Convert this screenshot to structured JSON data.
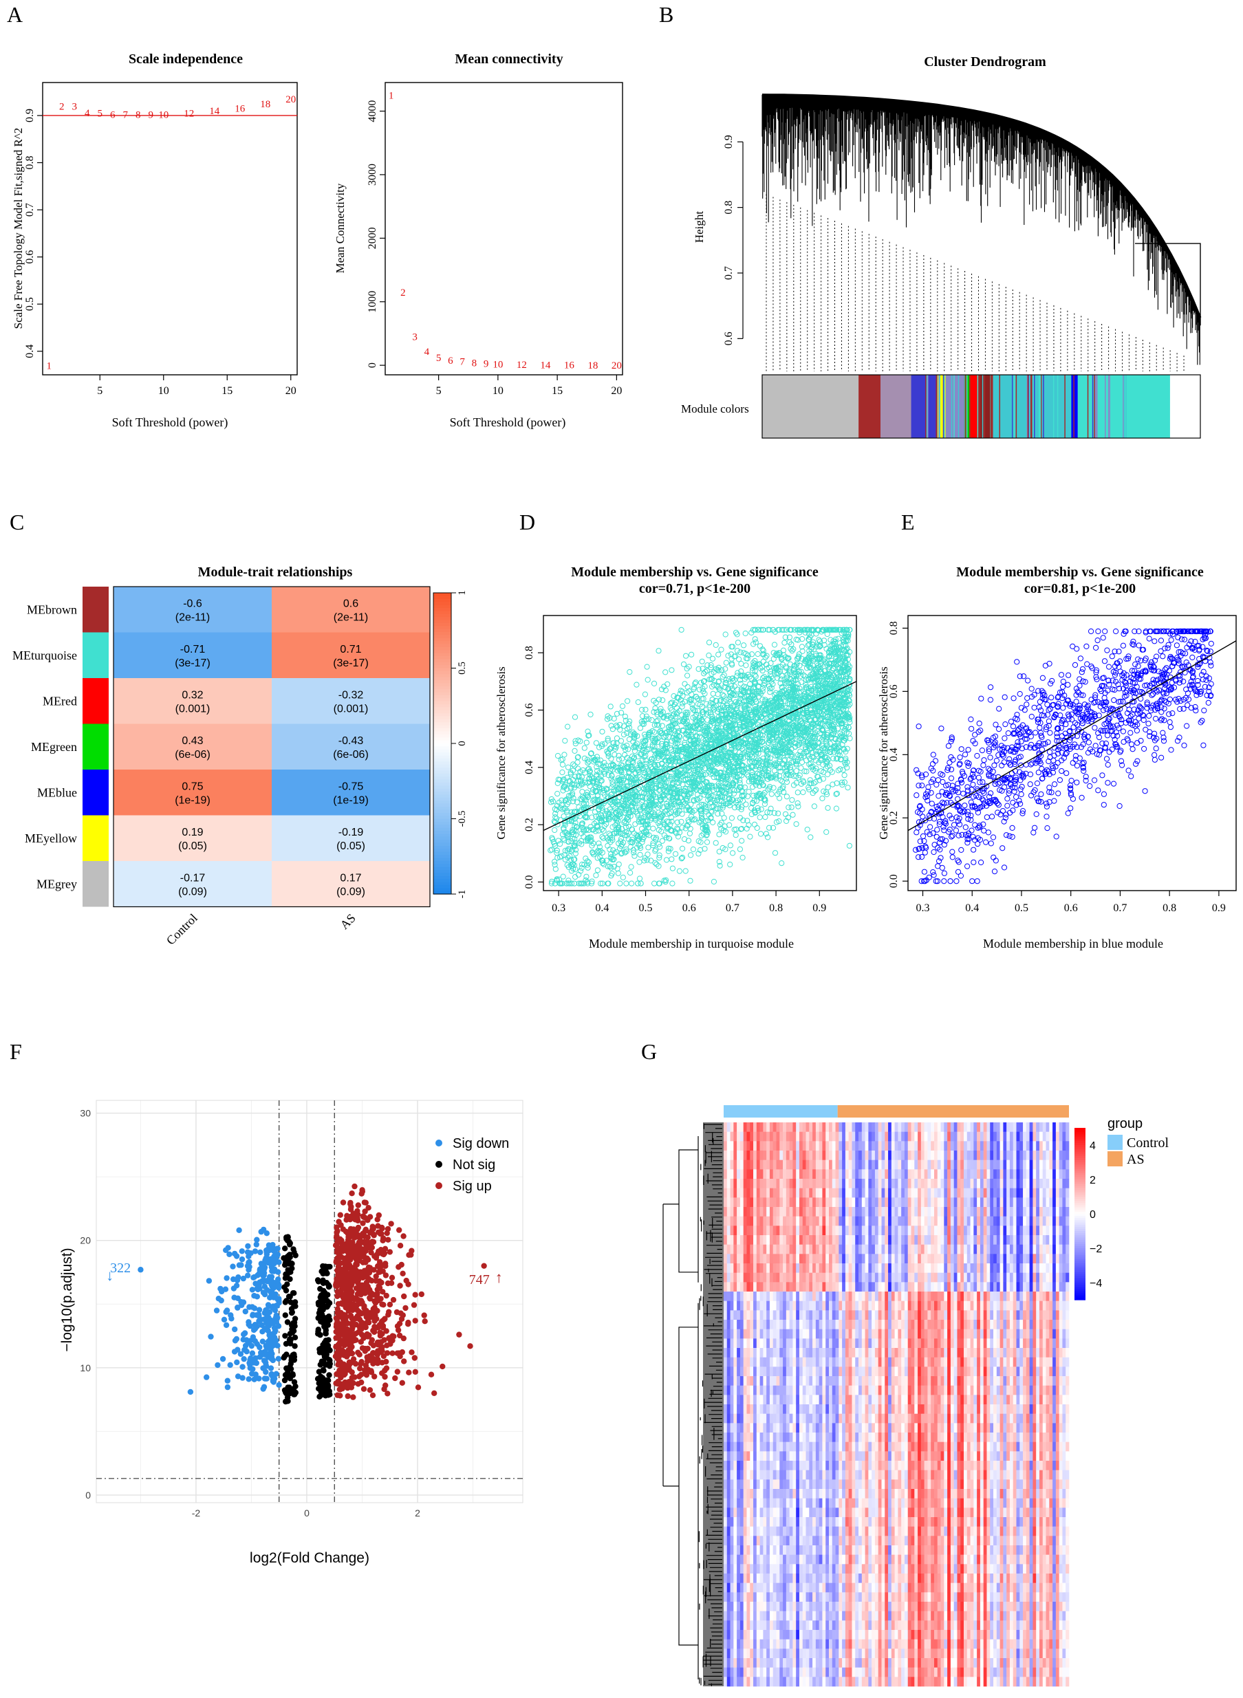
{
  "panel_letters": [
    "A",
    "B",
    "C",
    "D",
    "E",
    "F",
    "G"
  ],
  "chart_data": [
    {
      "panel": "A-left",
      "type": "scatter",
      "title": "Scale independence",
      "xlabel": "Soft Threshold (power)",
      "ylabel": "Scale Free Topology Model Fit,signed R^2",
      "xlim": [
        0.5,
        20.5
      ],
      "ylim": [
        0.35,
        0.97
      ],
      "xticks": [
        5,
        10,
        15,
        20
      ],
      "yticks": [
        0.4,
        0.5,
        0.6,
        0.7,
        0.8,
        0.9
      ],
      "hline": 0.9,
      "points": [
        {
          "x": 1,
          "y": 0.37,
          "label": "1"
        },
        {
          "x": 2,
          "y": 0.92,
          "label": "2"
        },
        {
          "x": 3,
          "y": 0.92,
          "label": "3"
        },
        {
          "x": 4,
          "y": 0.906,
          "label": "4"
        },
        {
          "x": 5,
          "y": 0.905,
          "label": "5"
        },
        {
          "x": 6,
          "y": 0.902,
          "label": "6"
        },
        {
          "x": 7,
          "y": 0.902,
          "label": "7"
        },
        {
          "x": 8,
          "y": 0.902,
          "label": "8"
        },
        {
          "x": 9,
          "y": 0.902,
          "label": "9"
        },
        {
          "x": 10,
          "y": 0.902,
          "label": "10"
        },
        {
          "x": 12,
          "y": 0.905,
          "label": "12"
        },
        {
          "x": 14,
          "y": 0.91,
          "label": "14"
        },
        {
          "x": 16,
          "y": 0.915,
          "label": "16"
        },
        {
          "x": 18,
          "y": 0.925,
          "label": "18"
        },
        {
          "x": 20,
          "y": 0.935,
          "label": "20"
        }
      ]
    },
    {
      "panel": "A-right",
      "type": "scatter",
      "title": "Mean connectivity",
      "xlabel": "Soft Threshold (power)",
      "ylabel": "Mean Connectivity",
      "xlim": [
        0.5,
        20.5
      ],
      "ylim": [
        -150,
        4450
      ],
      "xticks": [
        5,
        10,
        15,
        20
      ],
      "yticks": [
        0,
        1000,
        2000,
        3000,
        4000
      ],
      "points": [
        {
          "x": 1,
          "y": 4250,
          "label": "1"
        },
        {
          "x": 2,
          "y": 1150,
          "label": "2"
        },
        {
          "x": 3,
          "y": 450,
          "label": "3"
        },
        {
          "x": 4,
          "y": 220,
          "label": "4"
        },
        {
          "x": 5,
          "y": 120,
          "label": "5"
        },
        {
          "x": 6,
          "y": 80,
          "label": "6"
        },
        {
          "x": 7,
          "y": 60,
          "label": "7"
        },
        {
          "x": 8,
          "y": 40,
          "label": "8"
        },
        {
          "x": 9,
          "y": 30,
          "label": "9"
        },
        {
          "x": 10,
          "y": 20,
          "label": "10"
        },
        {
          "x": 12,
          "y": 10,
          "label": "12"
        },
        {
          "x": 14,
          "y": 8,
          "label": "14"
        },
        {
          "x": 16,
          "y": 5,
          "label": "16"
        },
        {
          "x": 18,
          "y": 3,
          "label": "18"
        },
        {
          "x": 20,
          "y": 2,
          "label": "20"
        }
      ]
    },
    {
      "panel": "B",
      "type": "dendrogram",
      "title": "Cluster Dendrogram",
      "ylabel": "Height",
      "yticks": [
        0.6,
        0.7,
        0.8,
        0.9
      ],
      "ylim": [
        0.55,
        0.98
      ],
      "color_bar_label": "Module colors",
      "modules": [
        {
          "color": "#bebebe",
          "share": 0.22
        },
        {
          "color": "#a52a2a",
          "share": 0.05
        },
        {
          "color": "#a58fb0",
          "share": 0.07
        },
        {
          "color": "#3b3bd0",
          "share": 0.06
        },
        {
          "color": "#ffff00",
          "share": 0.02
        },
        {
          "color": "#8888c8",
          "share": 0.04
        },
        {
          "color": "#00cc00",
          "share": 0.015
        },
        {
          "color": "#ff0000",
          "share": 0.02
        },
        {
          "color": "#8b2020",
          "share": 0.03
        },
        {
          "color": "#40c8d0",
          "share": 0.18
        },
        {
          "color": "#0000ff",
          "share": 0.015
        },
        {
          "color": "#40e0d0",
          "share": 0.21
        }
      ]
    },
    {
      "panel": "C",
      "type": "heatmap",
      "title": "Module-trait relationships",
      "columns": [
        "Control",
        "AS"
      ],
      "colorbar_ticks": [
        "1",
        "0.5",
        "0",
        "-0.5",
        "-1"
      ],
      "rows": [
        {
          "name": "MEbrown",
          "color": "#a52a2a",
          "values": [
            -0.6,
            0.6
          ],
          "pvals": [
            "(2e-11)",
            "(2e-11)"
          ]
        },
        {
          "name": "MEturquoise",
          "color": "#40e0d0",
          "values": [
            -0.71,
            0.71
          ],
          "pvals": [
            "(3e-17)",
            "(3e-17)"
          ]
        },
        {
          "name": "MEred",
          "color": "#ff0000",
          "values": [
            0.32,
            -0.32
          ],
          "pvals": [
            "(0.001)",
            "(0.001)"
          ]
        },
        {
          "name": "MEgreen",
          "color": "#00dd00",
          "values": [
            0.43,
            -0.43
          ],
          "pvals": [
            "(6e-06)",
            "(6e-06)"
          ]
        },
        {
          "name": "MEblue",
          "color": "#0000ff",
          "values": [
            0.75,
            -0.75
          ],
          "pvals": [
            "(1e-19)",
            "(1e-19)"
          ]
        },
        {
          "name": "MEyellow",
          "color": "#ffff00",
          "values": [
            0.19,
            -0.19
          ],
          "pvals": [
            "(0.05)",
            "(0.05)"
          ]
        },
        {
          "name": "MEgrey",
          "color": "#bebebe",
          "values": [
            -0.17,
            0.17
          ],
          "pvals": [
            "(0.09)",
            "(0.09)"
          ]
        }
      ]
    },
    {
      "panel": "D",
      "type": "scatter",
      "title": "Module membership vs. Gene significance",
      "subtitle": "cor=0.71, p<1e-200",
      "xlabel": "Module membership in turquoise module",
      "ylabel": "Gene significance for atherosclerosis",
      "xlim": [
        0.265,
        0.985
      ],
      "ylim": [
        -0.03,
        0.93
      ],
      "xticks": [
        0.3,
        0.4,
        0.5,
        0.6,
        0.7,
        0.8,
        0.9
      ],
      "yticks": [
        0.0,
        0.2,
        0.4,
        0.6,
        0.8
      ],
      "point_color": "#40e0d0",
      "fit": {
        "x0": 0.265,
        "y0": 0.18,
        "x1": 0.985,
        "y1": 0.7
      }
    },
    {
      "panel": "E",
      "type": "scatter",
      "title": "Module membership vs. Gene significance",
      "subtitle": "cor=0.81, p<1e-200",
      "xlabel": "Module membership in blue module",
      "ylabel": "Gene significance for atherosclerosis",
      "xlim": [
        0.27,
        0.935
      ],
      "ylim": [
        -0.03,
        0.84
      ],
      "xticks": [
        0.3,
        0.4,
        0.5,
        0.6,
        0.7,
        0.8,
        0.9
      ],
      "yticks": [
        0.0,
        0.2,
        0.4,
        0.6,
        0.8
      ],
      "point_color": "#0000ff",
      "fit": {
        "x0": 0.27,
        "y0": 0.16,
        "x1": 0.935,
        "y1": 0.76
      }
    },
    {
      "panel": "F",
      "type": "scatter",
      "subtype": "volcano",
      "xlabel": "log2(Fold Change)",
      "ylabel": "−log10(p.adjust)",
      "xlim": [
        -3.8,
        3.9
      ],
      "ylim": [
        -0.6,
        31
      ],
      "xticks": [
        -2,
        0,
        2
      ],
      "yticks": [
        0,
        10,
        20,
        30
      ],
      "vlines": [
        -0.5,
        0.5
      ],
      "hline": 1.3,
      "legend": [
        {
          "label": "Sig down",
          "color": "#2e8fe8"
        },
        {
          "label": "Not sig",
          "color": "#000000"
        },
        {
          "label": "Sig up",
          "color": "#b22222"
        }
      ],
      "annotations": [
        {
          "text": "322",
          "arrow": "↓",
          "color": "#2e8fe8",
          "x": -3.6,
          "y": 17.5
        },
        {
          "text": "747",
          "arrow": "↑",
          "color": "#b22222",
          "x": 3.4,
          "y": 17.0
        }
      ],
      "counts": {
        "down": 322,
        "up": 747
      }
    },
    {
      "panel": "G",
      "type": "heatmap",
      "legend_title": "group",
      "groups": [
        {
          "label": "Control",
          "color": "#87cefa",
          "share": 0.33
        },
        {
          "label": "AS",
          "color": "#f4a460",
          "share": 0.67
        }
      ],
      "colorbar_ticks": [
        "4",
        "2",
        "0",
        "−2",
        "−4"
      ],
      "colorbar_range": [
        -5,
        5
      ]
    }
  ]
}
